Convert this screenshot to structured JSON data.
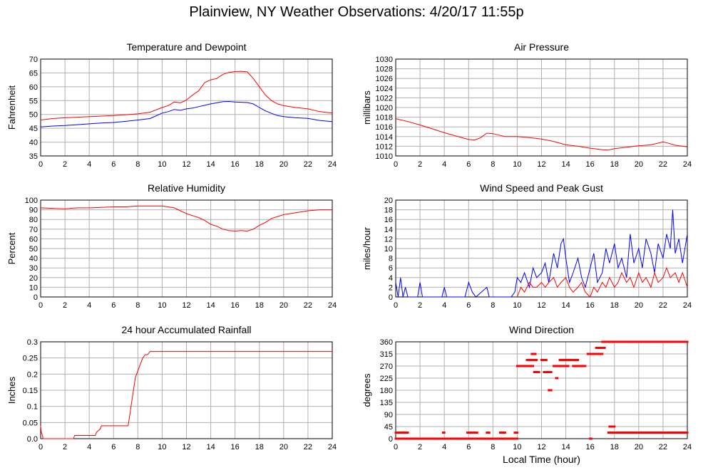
{
  "page": {
    "title": "Plainview, NY Weather Observations: 4/20/17 11:55p"
  },
  "colors": {
    "primary": "#ff0000",
    "secondary": "#0000ff",
    "grid": "#b0b0b0",
    "axis": "#000000"
  },
  "chart_data": [
    {
      "type": "line",
      "title": "Temperature and Dewpoint",
      "ylabel": "Fahrenheit",
      "xlabel": "",
      "xlim": [
        0,
        24
      ],
      "ylim": [
        35,
        70
      ],
      "xticks": [
        0,
        2,
        4,
        6,
        8,
        10,
        12,
        14,
        16,
        18,
        20,
        22,
        24
      ],
      "yticks": [
        35,
        40,
        45,
        50,
        55,
        60,
        65,
        70
      ],
      "grid": true,
      "series": [
        {
          "color": "#ff0000",
          "x": [
            0,
            1,
            2,
            3,
            4,
            5,
            6,
            7,
            8,
            9,
            10,
            10.5,
            11,
            11.5,
            12,
            12.5,
            13,
            13.5,
            14,
            14.5,
            15,
            15.5,
            16,
            16.5,
            17,
            17.5,
            18,
            18.5,
            19,
            19.5,
            20,
            21,
            22,
            23,
            24
          ],
          "y": [
            48,
            48.5,
            48.8,
            49,
            49.2,
            49.4,
            49.6,
            49.9,
            50.2,
            50.8,
            52.5,
            53.2,
            54.5,
            54.2,
            55.2,
            57,
            58.5,
            61.5,
            62.5,
            63,
            64.5,
            65.2,
            65.5,
            65.6,
            65.4,
            63,
            60,
            57,
            55,
            53.8,
            53.2,
            52.5,
            52,
            51,
            50.5
          ]
        },
        {
          "color": "#0000ff",
          "x": [
            0,
            1,
            2,
            3,
            4,
            5,
            6,
            7,
            8,
            9,
            10,
            10.5,
            11,
            11.5,
            12,
            12.5,
            13,
            13.5,
            14,
            14.5,
            15,
            15.5,
            16,
            16.5,
            17,
            17.5,
            18,
            18.5,
            19,
            19.5,
            20,
            21,
            22,
            23,
            24
          ],
          "y": [
            45.5,
            45.8,
            46,
            46.3,
            46.6,
            46.9,
            47.1,
            47.5,
            48,
            48.5,
            50.5,
            51,
            51.8,
            51.5,
            52,
            52.3,
            52.8,
            53.3,
            53.8,
            54.2,
            54.6,
            54.7,
            54.5,
            54.4,
            54.3,
            53.8,
            52.5,
            51.3,
            50.4,
            49.6,
            49.2,
            48.8,
            48.6,
            47.8,
            47.4
          ]
        }
      ]
    },
    {
      "type": "line",
      "title": "Air Pressure",
      "ylabel": "millibars",
      "xlabel": "",
      "xlim": [
        0,
        24
      ],
      "ylim": [
        1010,
        1030
      ],
      "xticks": [
        0,
        2,
        4,
        6,
        8,
        10,
        12,
        14,
        16,
        18,
        20,
        22,
        24
      ],
      "yticks": [
        1010,
        1012,
        1014,
        1016,
        1018,
        1020,
        1022,
        1024,
        1026,
        1028,
        1030
      ],
      "grid": true,
      "series": [
        {
          "color": "#ff0000",
          "x": [
            0,
            1,
            2,
            3,
            4,
            5,
            6,
            6.5,
            7,
            7.5,
            8,
            9,
            10,
            11,
            12,
            13,
            14,
            15,
            16,
            17,
            17.5,
            18,
            19,
            20,
            21,
            22,
            22.5,
            23,
            24
          ],
          "y": [
            1017.7,
            1017.1,
            1016.4,
            1015.6,
            1014.8,
            1014.1,
            1013.4,
            1013.3,
            1013.8,
            1014.7,
            1014.6,
            1014,
            1014,
            1013.8,
            1013.5,
            1013,
            1012.3,
            1012,
            1011.6,
            1011.3,
            1011.2,
            1011.5,
            1011.8,
            1012.1,
            1012.3,
            1012.9,
            1012.6,
            1012.2,
            1011.9
          ]
        }
      ]
    },
    {
      "type": "line",
      "title": "Relative Humidity",
      "ylabel": "Percent",
      "xlabel": "",
      "xlim": [
        0,
        24
      ],
      "ylim": [
        0,
        100
      ],
      "xticks": [
        0,
        2,
        4,
        6,
        8,
        10,
        12,
        14,
        16,
        18,
        20,
        22,
        24
      ],
      "yticks": [
        0,
        10,
        20,
        30,
        40,
        50,
        60,
        70,
        80,
        90,
        100
      ],
      "grid": true,
      "series": [
        {
          "color": "#ff0000",
          "x": [
            0,
            1,
            2,
            3,
            4,
            5,
            6,
            7,
            8,
            9,
            10,
            11,
            11.5,
            12,
            12.5,
            13,
            13.5,
            14,
            14.5,
            15,
            15.5,
            16,
            16.5,
            17,
            17.5,
            18,
            18.5,
            19,
            20,
            21,
            22,
            23,
            24
          ],
          "y": [
            92,
            91.5,
            91,
            92,
            92,
            92.5,
            93,
            93,
            94,
            94,
            94,
            92,
            89,
            86,
            84,
            82,
            79,
            75,
            73,
            70,
            68.5,
            68,
            68.5,
            68,
            70,
            74,
            77,
            81,
            85,
            87,
            89,
            90,
            90
          ]
        }
      ]
    },
    {
      "type": "line",
      "title": "Wind Speed and Peak Gust",
      "ylabel": "miles/hour",
      "xlabel": "",
      "xlim": [
        0,
        24
      ],
      "ylim": [
        0,
        20
      ],
      "xticks": [
        0,
        2,
        4,
        6,
        8,
        10,
        12,
        14,
        16,
        18,
        20,
        22,
        24
      ],
      "yticks": [
        0,
        2,
        4,
        6,
        8,
        10,
        12,
        14,
        16,
        18,
        20
      ],
      "grid": true,
      "series": [
        {
          "color": "#0000ff",
          "x": [
            0,
            0.2,
            0.4,
            0.6,
            0.8,
            1,
            1.8,
            2,
            2.2,
            3.8,
            4,
            4.2,
            5.7,
            6,
            6.3,
            6.6,
            7.5,
            7.7,
            9.5,
            9.8,
            10,
            10.3,
            10.6,
            11,
            11.3,
            11.6,
            12,
            12.3,
            12.6,
            13,
            13.3,
            13.6,
            13.8,
            14,
            14.3,
            14.6,
            15,
            15.3,
            15.6,
            16,
            16.3,
            16.6,
            17,
            17.3,
            17.6,
            18,
            18.3,
            18.6,
            19,
            19.3,
            19.6,
            20,
            20.3,
            20.6,
            21,
            21.3,
            21.6,
            22,
            22.3,
            22.6,
            22.8,
            23,
            23.3,
            23.6,
            24
          ],
          "y": [
            3,
            0,
            4,
            0,
            2,
            0,
            0,
            3,
            0,
            0,
            2,
            0,
            0,
            3,
            1,
            0,
            2,
            0,
            0,
            1,
            4,
            3,
            5,
            2,
            6,
            4,
            5,
            7,
            3,
            9,
            6,
            11,
            12,
            8,
            3,
            5,
            8,
            4,
            2,
            6,
            9,
            3,
            5,
            10,
            7,
            11,
            6,
            8,
            4,
            13,
            7,
            10,
            6,
            12,
            9,
            5,
            11,
            8,
            13,
            10,
            18,
            9,
            12,
            7,
            13
          ]
        },
        {
          "color": "#ff0000",
          "x": [
            10,
            10.3,
            10.6,
            11,
            11.3,
            11.6,
            12,
            12.3,
            12.6,
            13,
            13.3,
            13.6,
            14,
            14.3,
            14.6,
            15,
            15.3,
            15.6,
            16,
            16.3,
            16.6,
            17,
            17.3,
            17.6,
            18,
            18.3,
            18.6,
            19,
            19.3,
            19.6,
            20,
            20.3,
            20.6,
            21,
            21.3,
            21.6,
            22,
            22.3,
            22.6,
            23,
            23.3,
            23.6,
            24
          ],
          "y": [
            0,
            2,
            1,
            3,
            2,
            2,
            3,
            2,
            3,
            4,
            2,
            3,
            4,
            2,
            1,
            2,
            3,
            1,
            0,
            2,
            1,
            3,
            2,
            4,
            2,
            3,
            5,
            3,
            4,
            2,
            5,
            3,
            4,
            2,
            5,
            3,
            4,
            6,
            4,
            5,
            3,
            5,
            2
          ]
        }
      ]
    },
    {
      "type": "line",
      "title": "24 hour Accumulated Rainfall",
      "ylabel": "Inches",
      "xlabel": "",
      "xlim": [
        0,
        24
      ],
      "ylim": [
        0,
        0.3
      ],
      "xticks": [
        0,
        2,
        4,
        6,
        8,
        10,
        12,
        14,
        16,
        18,
        20,
        22,
        24
      ],
      "yticks": [
        0,
        0.05,
        0.1,
        0.15,
        0.2,
        0.25,
        0.3
      ],
      "ytick_labels": [
        "0.0",
        "0.05",
        "0.1",
        "0.15",
        "0.2",
        "0.25",
        "0.3"
      ],
      "grid": true,
      "series": [
        {
          "color": "#ff0000",
          "x": [
            0,
            0.05,
            0.15,
            0.2,
            2.7,
            2.8,
            4.5,
            4.6,
            4.9,
            5.0,
            7.2,
            7.4,
            7.6,
            7.8,
            8.0,
            8.2,
            8.4,
            8.6,
            8.8,
            9.0,
            24
          ],
          "y": [
            0.04,
            0.02,
            0.01,
            0,
            0,
            0.01,
            0.01,
            0.02,
            0.03,
            0.04,
            0.04,
            0.09,
            0.14,
            0.19,
            0.21,
            0.23,
            0.25,
            0.26,
            0.26,
            0.27,
            0.27
          ]
        }
      ]
    },
    {
      "type": "scatter",
      "title": "Wind Direction",
      "ylabel": "degrees",
      "xlabel": "Local Time (hour)",
      "xlim": [
        0,
        24
      ],
      "ylim": [
        0,
        360
      ],
      "xticks": [
        0,
        2,
        4,
        6,
        8,
        10,
        12,
        14,
        16,
        18,
        20,
        22,
        24
      ],
      "yticks": [
        0,
        45,
        90,
        135,
        180,
        225,
        270,
        315,
        360
      ],
      "grid": true,
      "series": [
        {
          "color": "#ff0000",
          "runs": [
            {
              "x": [
                0,
                1.0
              ],
              "y": 22.5
            },
            {
              "x": [
                0,
                10.0
              ],
              "y": 0
            },
            {
              "x": [
                3.9,
                4.0
              ],
              "y": 22.5
            },
            {
              "x": [
                5.9,
                6.7
              ],
              "y": 22.5
            },
            {
              "x": [
                7.5,
                7.7
              ],
              "y": 22.5
            },
            {
              "x": [
                8.6,
                9.0
              ],
              "y": 22.5
            },
            {
              "x": [
                9.8,
                10.0
              ],
              "y": 22.5
            },
            {
              "x": [
                10.0,
                11.3
              ],
              "y": 270
            },
            {
              "x": [
                10.8,
                11.6
              ],
              "y": 292.5
            },
            {
              "x": [
                11.2,
                11.5
              ],
              "y": 315
            },
            {
              "x": [
                11.4,
                11.8
              ],
              "y": 247.5
            },
            {
              "x": [
                12.0,
                12.4
              ],
              "y": 292.5
            },
            {
              "x": [
                12.2,
                12.8
              ],
              "y": 247.5
            },
            {
              "x": [
                12.6,
                12.8
              ],
              "y": 180
            },
            {
              "x": [
                13.0,
                14.2
              ],
              "y": 270
            },
            {
              "x": [
                13.5,
                15.0
              ],
              "y": 292.5
            },
            {
              "x": [
                14.6,
                15.6
              ],
              "y": 270
            },
            {
              "x": [
                15.8,
                17.0
              ],
              "y": 315
            },
            {
              "x": [
                16.5,
                17.2
              ],
              "y": 337.5
            },
            {
              "x": [
                17.0,
                24.0
              ],
              "y": 360
            },
            {
              "x": [
                17.5,
                24.0
              ],
              "y": 22.5
            },
            {
              "x": [
                17.6,
                18.0
              ],
              "y": 45
            },
            {
              "x": [
                16.0,
                16.1
              ],
              "y": 0
            },
            {
              "x": [
                13.2,
                13.3
              ],
              "y": 225
            }
          ]
        }
      ]
    }
  ]
}
